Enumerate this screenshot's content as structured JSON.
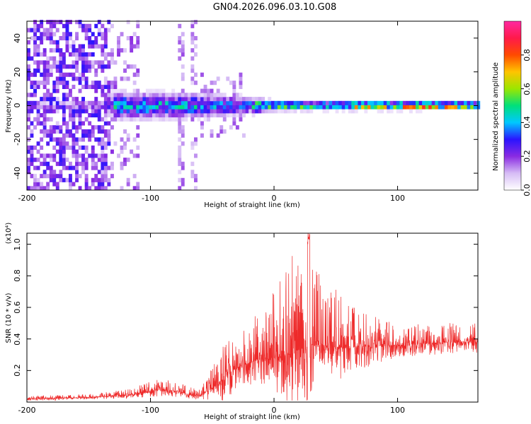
{
  "title": "GN04.2026.096.03.10.G08",
  "chart_data": [
    {
      "type": "heatmap",
      "name": "spectrogram",
      "xlabel": "Height of straight line (km)",
      "ylabel": "Frequency (Hz)",
      "xlim": [
        -200,
        165
      ],
      "ylim": [
        -50,
        50
      ],
      "xticks": [
        -200,
        -100,
        0,
        100
      ],
      "xtick_labels": [
        "-200",
        "-100",
        "0",
        "100"
      ],
      "yticks": [
        -40,
        -20,
        0,
        20,
        40
      ],
      "ytick_labels": [
        "-40",
        "-20",
        "0",
        "20",
        "40"
      ],
      "band_center_hz": 0,
      "band_halfwidth_hz": [
        [
          -140,
          12
        ],
        [
          -60,
          10
        ],
        [
          -30,
          8
        ],
        [
          0,
          4
        ],
        [
          165,
          3
        ]
      ],
      "colorbar": {
        "label": "Normalized spectral amplitude",
        "range": [
          0,
          1
        ],
        "ticks": [
          0.0,
          0.2,
          0.4,
          0.6,
          0.8
        ],
        "tick_labels": [
          "0.0",
          "0.2",
          "0.4",
          "0.6",
          "0.8"
        ],
        "colors": [
          "#ffffff",
          "#d6bcf5",
          "#8a2be2",
          "#2a14ff",
          "#00c8ff",
          "#00e07a",
          "#9be600",
          "#ffc400",
          "#ff4a00",
          "#ff1a4a",
          "#ff28a0"
        ]
      }
    },
    {
      "type": "line",
      "name": "snr",
      "xlabel": "Height of straight line (km)",
      "ylabel": "SNR (10 * v/v)",
      "scale_label": "(x10⁴)",
      "xlim": [
        -200,
        165
      ],
      "ylim": [
        0,
        1.07
      ],
      "xticks": [
        -200,
        -100,
        0,
        100
      ],
      "xtick_labels": [
        "-200",
        "-100",
        "0",
        "100"
      ],
      "yticks": [
        0.2,
        0.4,
        0.6,
        0.8,
        1.0
      ],
      "ytick_labels": [
        "0.2",
        "0.4",
        "0.6",
        "0.8",
        "1.0"
      ],
      "line_color": "#ee2a2a",
      "envelope": {
        "x": [
          -200,
          -150,
          -120,
          -100,
          -90,
          -80,
          -70,
          -60,
          -50,
          -40,
          -30,
          -20,
          -10,
          0,
          10,
          20,
          30,
          40,
          50,
          60,
          70,
          80,
          90,
          100,
          120,
          140,
          165
        ],
        "mean": [
          0.02,
          0.03,
          0.04,
          0.07,
          0.08,
          0.07,
          0.05,
          0.04,
          0.09,
          0.15,
          0.22,
          0.25,
          0.28,
          0.28,
          0.3,
          0.33,
          0.36,
          0.36,
          0.35,
          0.34,
          0.35,
          0.35,
          0.36,
          0.36,
          0.37,
          0.38,
          0.38
        ],
        "peak": [
          0.04,
          0.05,
          0.08,
          0.13,
          0.15,
          0.14,
          0.1,
          0.08,
          0.22,
          0.4,
          0.45,
          0.5,
          0.6,
          0.72,
          0.85,
          1.07,
          0.92,
          0.75,
          0.72,
          0.62,
          0.58,
          0.55,
          0.52,
          0.5,
          0.5,
          0.5,
          0.5
        ]
      }
    }
  ]
}
